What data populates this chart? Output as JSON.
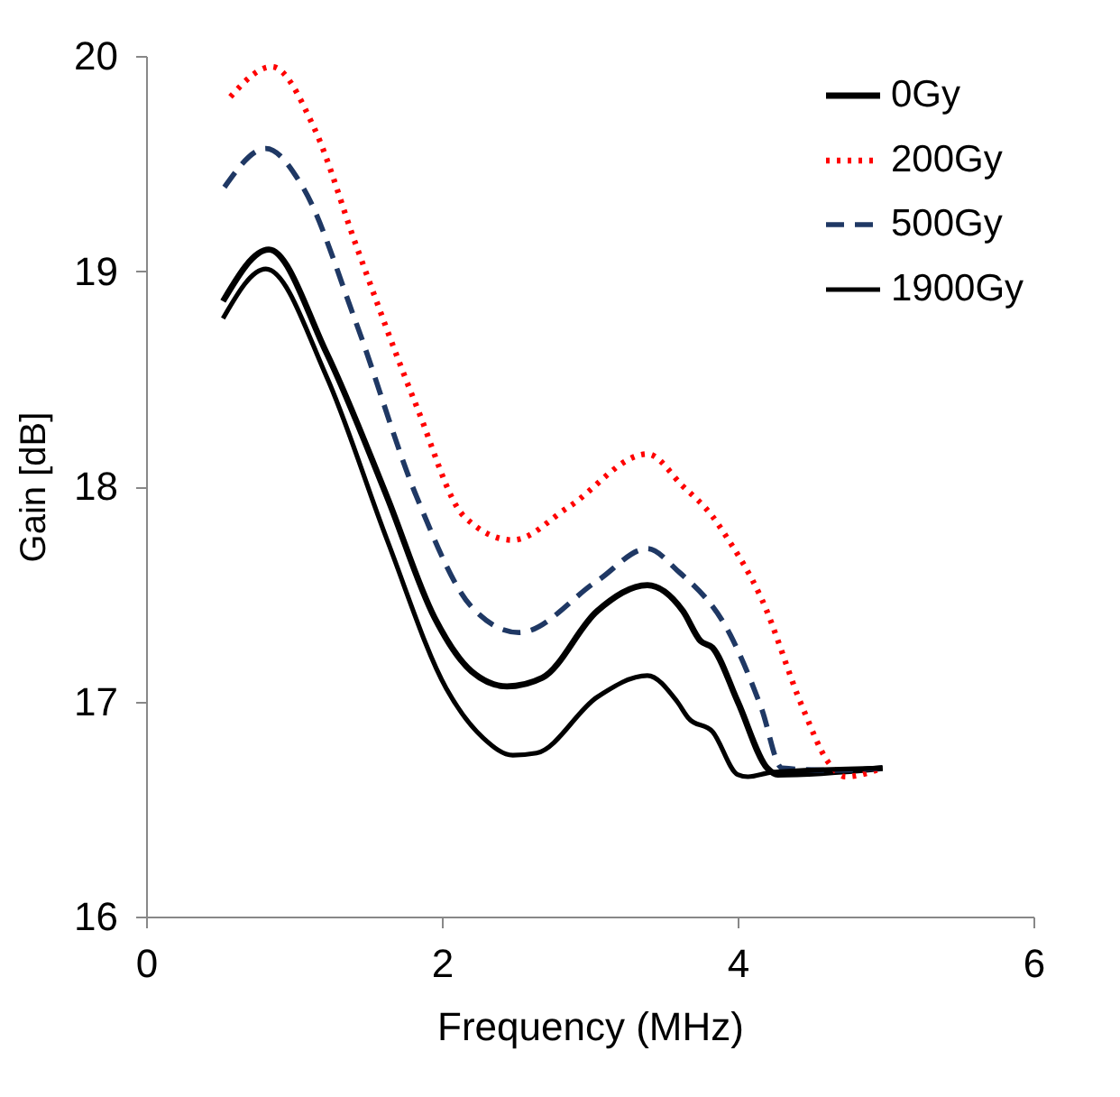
{
  "chart_data": {
    "type": "line",
    "xlabel": "Frequency (MHz)",
    "ylabel": "Gain [dB]",
    "xlim": [
      0,
      6
    ],
    "xticks": [
      0,
      2,
      4,
      6
    ],
    "ylim": [
      16,
      20
    ],
    "yticks": [
      16,
      17,
      18,
      19,
      20
    ],
    "grid": false,
    "legend": "top right",
    "marker": "none",
    "series": [
      {
        "name": "0Gy",
        "color": "#000000",
        "line_style": "solid",
        "x": [
          0.52,
          0.83,
          1.22,
          1.63,
          1.95,
          2.2,
          2.44,
          2.68,
          3.05,
          3.39,
          3.63,
          3.75,
          3.83,
          4.0,
          4.2,
          4.27,
          4.98
        ],
        "values": [
          18.86,
          19.1,
          18.62,
          17.95,
          17.39,
          17.14,
          17.07,
          17.11,
          17.42,
          17.54,
          17.42,
          17.28,
          17.25,
          17.0,
          16.69,
          16.66,
          16.69
        ]
      },
      {
        "name": "200Gy",
        "color": "#ff0000",
        "line_style": "dotted",
        "x": [
          0.57,
          0.85,
          1.14,
          1.42,
          1.83,
          2.15,
          2.48,
          2.85,
          3.39,
          3.63,
          3.83,
          3.91,
          4.16,
          4.44,
          4.61,
          4.73,
          4.98
        ],
        "values": [
          19.81,
          19.95,
          19.66,
          19.12,
          18.37,
          17.86,
          17.75,
          17.9,
          18.15,
          18.0,
          17.86,
          17.78,
          17.48,
          16.97,
          16.72,
          16.65,
          16.69
        ]
      },
      {
        "name": "500Gy",
        "color": "#1f3864",
        "line_style": "dashed",
        "x": [
          0.53,
          0.81,
          1.06,
          1.42,
          1.83,
          2.2,
          2.52,
          3.05,
          3.39,
          3.59,
          3.95,
          4.16,
          4.3,
          4.65,
          4.98
        ],
        "values": [
          19.39,
          19.57,
          19.39,
          18.76,
          17.95,
          17.44,
          17.32,
          17.56,
          17.71,
          17.61,
          17.31,
          16.97,
          16.69,
          16.68,
          16.69
        ]
      },
      {
        "name": "1900Gy",
        "color": "#000000",
        "line_style": "solid",
        "x": [
          0.52,
          0.81,
          1.22,
          1.63,
          2.03,
          2.28,
          2.48,
          2.64,
          3.05,
          3.39,
          3.59,
          3.67,
          3.83,
          4.0,
          4.07,
          4.23,
          4.98
        ],
        "values": [
          18.78,
          19.01,
          18.51,
          17.75,
          17.06,
          16.83,
          16.75,
          16.76,
          17.02,
          17.12,
          17.0,
          16.92,
          16.86,
          16.66,
          16.65,
          16.67,
          16.69
        ]
      }
    ]
  }
}
